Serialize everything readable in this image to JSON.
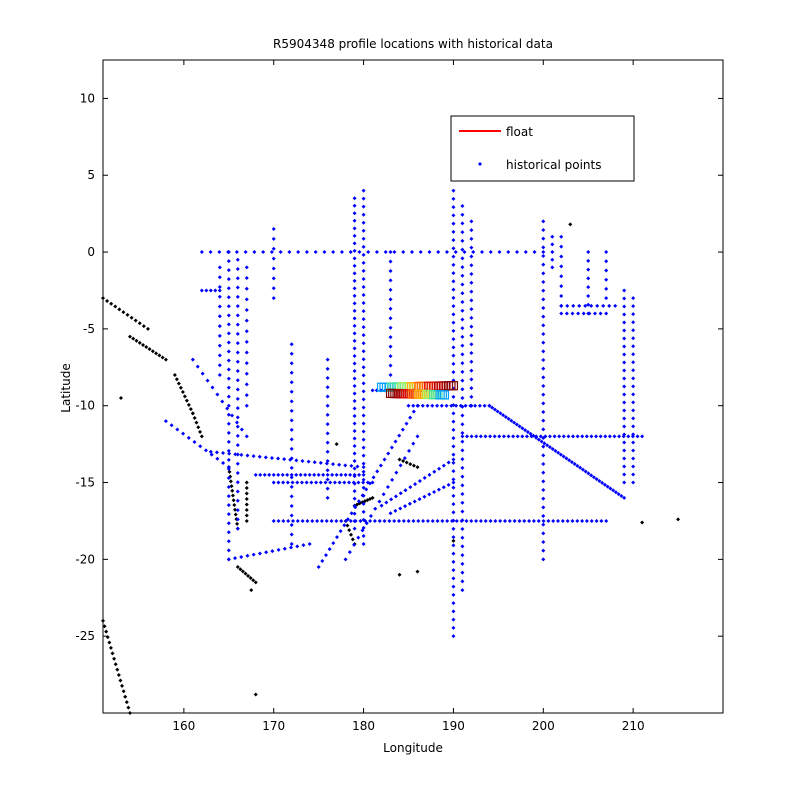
{
  "chart_data": {
    "type": "scatter",
    "title": "R5904348 profile locations with historical data",
    "xlabel": "Longitude",
    "ylabel": "Latitude",
    "xlim": [
      151,
      220
    ],
    "ylim": [
      -30,
      12.5
    ],
    "xticks": [
      160,
      170,
      180,
      190,
      200,
      210
    ],
    "yticks": [
      10,
      5,
      0,
      -5,
      -10,
      -15,
      -20,
      -25
    ],
    "grid": false,
    "legend_position": "top-right",
    "legend": [
      {
        "label": "float",
        "marker": "line",
        "color": "#ff0000"
      },
      {
        "label": "historical points",
        "marker": "dot",
        "color": "#0000ff"
      }
    ],
    "series": [
      {
        "name": "historical points",
        "color": "#0000ff",
        "tracks": [
          {
            "from": [
              162,
              0
            ],
            "to": [
              200,
              0
            ],
            "n": 40
          },
          {
            "from": [
              179,
              3.5
            ],
            "to": [
              179,
              -18
            ],
            "n": 45
          },
          {
            "from": [
              180,
              4
            ],
            "to": [
              180,
              -19
            ],
            "n": 45
          },
          {
            "from": [
              190,
              4
            ],
            "to": [
              190,
              -25
            ],
            "n": 55
          },
          {
            "from": [
              191,
              3
            ],
            "to": [
              191,
              -22
            ],
            "n": 45
          },
          {
            "from": [
              192,
              2
            ],
            "to": [
              192,
              -10
            ],
            "n": 22
          },
          {
            "from": [
              200,
              2
            ],
            "to": [
              200,
              -20
            ],
            "n": 40
          },
          {
            "from": [
              201,
              1
            ],
            "to": [
              201,
              -1
            ],
            "n": 5
          },
          {
            "from": [
              202,
              1
            ],
            "to": [
              202,
              -3.5
            ],
            "n": 8
          },
          {
            "from": [
              205,
              0
            ],
            "to": [
              205,
              -4
            ],
            "n": 8
          },
          {
            "from": [
              207,
              0
            ],
            "to": [
              207,
              -3
            ],
            "n": 6
          },
          {
            "from": [
              202,
              -3.5
            ],
            "to": [
              208,
              -3.5
            ],
            "n": 10
          },
          {
            "from": [
              202,
              -4
            ],
            "to": [
              207,
              -4
            ],
            "n": 9
          },
          {
            "from": [
              209,
              -2.5
            ],
            "to": [
              209,
              -15
            ],
            "n": 25
          },
          {
            "from": [
              210,
              -3
            ],
            "to": [
              210,
              -15
            ],
            "n": 24
          },
          {
            "from": [
              165,
              0
            ],
            "to": [
              165,
              -20
            ],
            "n": 35
          },
          {
            "from": [
              166,
              -0.5
            ],
            "to": [
              166,
              -18
            ],
            "n": 30
          },
          {
            "from": [
              167,
              -1
            ],
            "to": [
              167,
              -10
            ],
            "n": 14
          },
          {
            "from": [
              162,
              -2.5
            ],
            "to": [
              164,
              -2.5
            ],
            "n": 5
          },
          {
            "from": [
              164,
              -1
            ],
            "to": [
              164,
              -8
            ],
            "n": 12
          },
          {
            "from": [
              170,
              1.5
            ],
            "to": [
              170,
              -3
            ],
            "n": 8
          },
          {
            "from": [
              183,
              0
            ],
            "to": [
              183,
              -8
            ],
            "n": 14
          },
          {
            "from": [
              191,
              -12
            ],
            "to": [
              211,
              -12
            ],
            "n": 40
          },
          {
            "from": [
              194,
              -10
            ],
            "to": [
              209,
              -16
            ],
            "n": 50
          },
          {
            "from": [
              168,
              -14.5
            ],
            "to": [
              180,
              -14.5
            ],
            "n": 25
          },
          {
            "from": [
              170,
              -17.5
            ],
            "to": [
              207,
              -17.5
            ],
            "n": 70
          },
          {
            "from": [
              170,
              -15
            ],
            "to": [
              181,
              -15
            ],
            "n": 22
          },
          {
            "from": [
              163,
              -13
            ],
            "to": [
              180,
              -14
            ],
            "n": 26
          },
          {
            "from": [
              176,
              -7
            ],
            "to": [
              176,
              -16
            ],
            "n": 16
          },
          {
            "from": [
              172,
              -6
            ],
            "to": [
              172,
              -19
            ],
            "n": 22
          },
          {
            "from": [
              175,
              -20.5
            ],
            "to": [
              186,
              -10
            ],
            "n": 28
          },
          {
            "from": [
              178,
              -20
            ],
            "to": [
              186,
              -12
            ],
            "n": 18
          },
          {
            "from": [
              182,
              -16.5
            ],
            "to": [
              190,
              -13.5
            ],
            "n": 16
          },
          {
            "from": [
              183,
              -17
            ],
            "to": [
              190,
              -15
            ],
            "n": 14
          },
          {
            "from": [
              185,
              -10
            ],
            "to": [
              194,
              -10
            ],
            "n": 18
          },
          {
            "from": [
              161,
              -7
            ],
            "to": [
              167,
              -12
            ],
            "n": 12
          },
          {
            "from": [
              158,
              -11
            ],
            "to": [
              165,
              -14
            ],
            "n": 12
          },
          {
            "from": [
              165,
              -20
            ],
            "to": [
              174,
              -19
            ],
            "n": 14
          },
          {
            "from": [
              181,
              -9
            ],
            "to": [
              187,
              -9
            ],
            "n": 14
          }
        ]
      },
      {
        "name": "float",
        "color": "#ff0000",
        "tracks": [
          {
            "from": [
              182,
              -8.8
            ],
            "to": [
              190,
              -8.7
            ],
            "n": 30
          },
          {
            "from": [
              183,
              -9.2
            ],
            "to": [
              189,
              -9.3
            ],
            "n": 26
          }
        ]
      }
    ],
    "land_outlines": {
      "color": "#000000",
      "tracks": [
        {
          "from": [
            151,
            -3
          ],
          "to": [
            156,
            -5
          ],
          "n": 12
        },
        {
          "from": [
            154,
            -5.5
          ],
          "to": [
            158,
            -7
          ],
          "n": 12
        },
        {
          "from": [
            159,
            -8
          ],
          "to": [
            161,
            -10.5
          ],
          "n": 10
        },
        {
          "from": [
            161,
            -10.5
          ],
          "to": [
            162,
            -12
          ],
          "n": 6
        },
        {
          "from": [
            165,
            -14
          ],
          "to": [
            166,
            -18
          ],
          "n": 14
        },
        {
          "from": [
            167,
            -15
          ],
          "to": [
            167,
            -17.5
          ],
          "n": 8
        },
        {
          "from": [
            166,
            -20.5
          ],
          "to": [
            168,
            -21.5
          ],
          "n": 8
        },
        {
          "from": [
            178,
            -17.5
          ],
          "to": [
            179,
            -19
          ],
          "n": 6
        },
        {
          "from": [
            179,
            -16.5
          ],
          "to": [
            181,
            -16
          ],
          "n": 8
        },
        {
          "from": [
            151,
            -24
          ],
          "to": [
            154,
            -30
          ],
          "n": 18
        },
        {
          "from": [
            184,
            -13.5
          ],
          "to": [
            186,
            -14
          ],
          "n": 6
        }
      ],
      "points": [
        [
          203,
          1.8
        ],
        [
          211,
          -17.6
        ],
        [
          215,
          -17.4
        ],
        [
          168,
          -28.8
        ],
        [
          184,
          -21
        ],
        [
          186,
          -20.8
        ],
        [
          190,
          -18.8
        ],
        [
          167.5,
          -22
        ],
        [
          177,
          -12.5
        ],
        [
          153,
          -9.5
        ]
      ]
    }
  }
}
